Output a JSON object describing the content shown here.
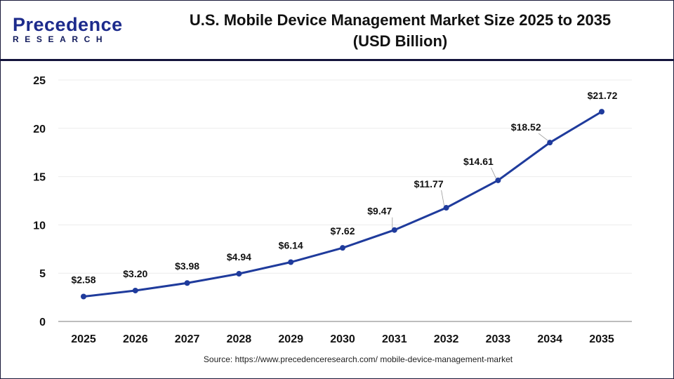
{
  "logo": {
    "line1": "Precedence",
    "line2": "RESEARCH"
  },
  "title": [
    "U.S. Mobile Device Management Market Size 2025 to 2035",
    "(USD Billion)"
  ],
  "source": "Source: https://www.precedenceresearch.com/ mobile-device-management-market",
  "colors": {
    "line": "#1f3b9c",
    "marker": "#1f3b9c",
    "grid": "#ececec",
    "axis": "#bdbdbd"
  },
  "chart_data": {
    "type": "line",
    "title": "U.S. Mobile Device Management Market Size 2025 to 2035 (USD Billion)",
    "xlabel": "",
    "ylabel": "",
    "categories": [
      "2025",
      "2026",
      "2027",
      "2028",
      "2029",
      "2030",
      "2031",
      "2032",
      "2033",
      "2034",
      "2035"
    ],
    "values": [
      2.58,
      3.2,
      3.98,
      4.94,
      6.14,
      7.62,
      9.47,
      11.77,
      14.61,
      18.52,
      21.72
    ],
    "data_labels": [
      "$2.58",
      "$3.20",
      "$3.98",
      "$4.94",
      "$6.14",
      "$7.62",
      "$9.47",
      "$11.77",
      "$14.61",
      "$18.52",
      "$21.72"
    ],
    "ylim": [
      0,
      25
    ],
    "yticks": [
      0,
      5,
      10,
      15,
      20,
      25
    ],
    "grid": true,
    "legend": "none"
  }
}
